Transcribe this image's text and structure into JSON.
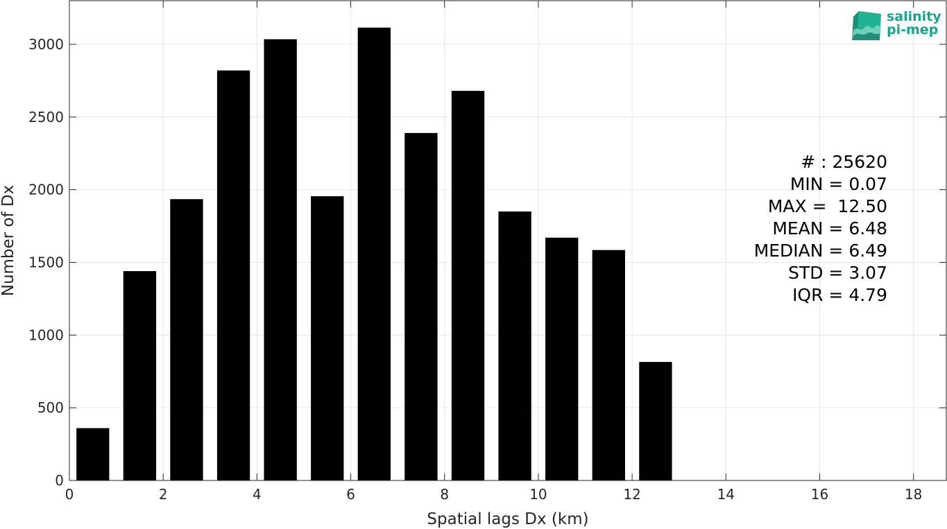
{
  "chart_data": {
    "type": "bar",
    "xlabel": "Spatial lags Dx (km)",
    "ylabel": "Number of Dx",
    "xlim": [
      0,
      18.7
    ],
    "ylim": [
      0,
      3300
    ],
    "xticks": [
      0,
      2,
      4,
      6,
      8,
      10,
      12,
      14,
      16,
      18
    ],
    "yticks": [
      0,
      500,
      1000,
      1500,
      2000,
      2500,
      3000
    ],
    "grid": true,
    "bar_width": 0.7,
    "bar_color": "#000000",
    "bars": [
      {
        "x": 0.5,
        "value": 360
      },
      {
        "x": 1.5,
        "value": 1440
      },
      {
        "x": 2.5,
        "value": 1935
      },
      {
        "x": 3.5,
        "value": 2820
      },
      {
        "x": 4.5,
        "value": 3035
      },
      {
        "x": 5.5,
        "value": 1955
      },
      {
        "x": 6.5,
        "value": 3115
      },
      {
        "x": 7.5,
        "value": 2390
      },
      {
        "x": 8.5,
        "value": 2680
      },
      {
        "x": 9.5,
        "value": 1850
      },
      {
        "x": 10.5,
        "value": 1670
      },
      {
        "x": 11.5,
        "value": 1585
      },
      {
        "x": 12.5,
        "value": 815
      }
    ]
  },
  "stats": {
    "count": "# : 25620",
    "min": "MIN = 0.07",
    "max": "MAX =  12.50",
    "mean": "MEAN = 6.48",
    "median": "MEDIAN = 6.49",
    "std": "STD = 3.07",
    "iqr": "IQR = 4.79"
  },
  "logo": {
    "line1": "salinity",
    "line2": "pi-mep",
    "icon": "wave-cube-icon",
    "color": "#19a58c"
  }
}
